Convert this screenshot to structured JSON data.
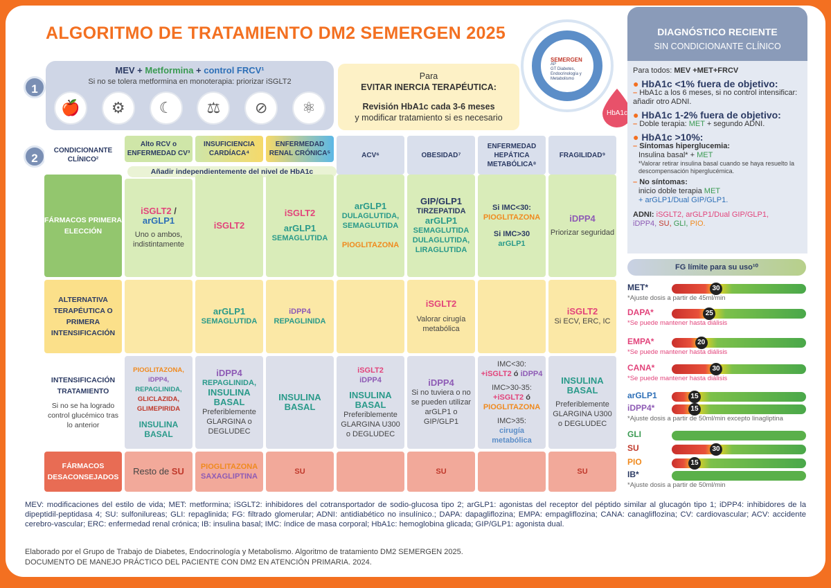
{
  "title": "ALGORITMO DE TRATAMIENTO DM2 SEMERGEN 2025",
  "logo": {
    "name": "SEMERGEN",
    "sub1": "AP",
    "sub2": "GT Diabetes, Endocrinología y Metabolismo"
  },
  "hba1c_badge": "HbA1c",
  "step1": {
    "num": "1",
    "mev": "MEV",
    "plus1": " + ",
    "metformina": "Metformina",
    "plus2": " + ",
    "frcv": "control FRCV¹",
    "sub": "Si no se tolera metformina en monoterapia: priorizar iSGLT2"
  },
  "step2": {
    "num": "2"
  },
  "inercia": {
    "l1": "Para",
    "l2": "EVITAR INERCIA TERAPÉUTICA:",
    "l3": "Revisión HbA1c cada 3-6 meses",
    "l4": "y modificar tratamiento si es necesario"
  },
  "headers": {
    "cond": "CONDICIONANTE CLÍNICO²",
    "c1": "Alto RCV o ENFERMEDAD CV³",
    "c2": "INSUFICIENCIA CARDÍACA⁴",
    "c3": "ENFERMEDAD RENAL CRÓNICA⁵",
    "c4": "ACV⁶",
    "c5": "OBESIDAD⁷",
    "c6": "ENFERMEDAD HEPÁTICA METABÓLICA⁸",
    "c7": "FRAGILIDAD⁹"
  },
  "band": "Añadir independientemente del nivel de HbA1c",
  "rows": {
    "r1": {
      "label": "FÁRMACOS PRIMERA ELECCIÓN",
      "c1a": "iSGLT2",
      "c1s": " / ",
      "c1b": "arGLP1",
      "c1c": "Uno o ambos, indistintamente",
      "c2": "iSGLT2",
      "c3a": "iSGLT2",
      "c3b": "arGLP1",
      "c3c": "SEMAGLUTIDA",
      "c4a": "arGLP1",
      "c4b": "DULAGLUTIDA, SEMAGLUTIDA",
      "c4c": "PIOGLITAZONA",
      "c5a": "GIP/GLP1",
      "c5b": "TIRZEPATIDA",
      "c5c": "arGLP1",
      "c5d": "SEMAGLUTIDA DULAGLUTIDA, LIRAGLUTIDA",
      "c6a": "Si IMC<30:",
      "c6b": "PIOGLITAZONA",
      "c6c": "Si IMC>30",
      "c6d": "arGLP1",
      "c7a": "iDPP4",
      "c7b": "Priorizar seguridad"
    },
    "r2": {
      "label": "ALTERNATIVA TERAPÉUTICA O PRIMERA INTENSIFICACIÓN",
      "c2a": "arGLP1",
      "c2b": "SEMAGLUTIDA",
      "c3a": "iDPP4",
      "c3b": "REPAGLINIDA",
      "c5a": "iSGLT2",
      "c5b": "Valorar cirugía metabólica",
      "c7a": "iSGLT2",
      "c7b": "Si ECV, ERC, IC"
    },
    "r3": {
      "label": "INTENSIFICACIÓN TRATAMIENTO",
      "sub": "Si no se ha logrado control glucémico tras lo anterior",
      "c1a": "PIOGLITAZONA,",
      "c1b": "iDPP4,",
      "c1c": "REPAGLINIDA,",
      "c1d": "GLICLAZIDA,",
      "c1e": "GLIMEPIRIDA",
      "c1f": "INSULINA BASAL",
      "c2a": "iDPP4",
      "c2b": "REPAGLINIDA,",
      "c2c": "INSULINA BASAL",
      "c2d": "Preferiblemente GLARGINA o DEGLUDEC",
      "c3": "INSULINA BASAL",
      "c4a": "iSGLT2",
      "c4b": "iDPP4",
      "c4c": "INSULINA BASAL",
      "c4d": "Preferiblemente GLARGINA U300 o DEGLUDEC",
      "c5a": "iDPP4",
      "c5b": "Si no tuviera o no se pueden utilizar arGLP1 o GIP/GLP1",
      "c6a": "IMC<30:",
      "c6b": "+iSGLT2",
      "c6c": " ó ",
      "c6d": "iDPP4",
      "c6e": "IMC>30-35:",
      "c6f": "+iSGLT2",
      "c6g": " ó ",
      "c6h": "PIOGLITAZONA",
      "c6i": "IMC>35:",
      "c6j": "cirugía metabólica",
      "c7a": "INSULINA BASAL",
      "c7b": "Preferiblemente GLARGINA U300 o DEGLUDEC"
    },
    "r4": {
      "label": "FÁRMACOS DESACONSEJADOS",
      "c1a": "Resto de ",
      "c1b": "SU",
      "c2a": "PIOGLITAZONA",
      "c2b": "SAXAGLIPTINA",
      "c3": "SU",
      "c5": "SU",
      "c7": "SU"
    }
  },
  "right": {
    "title": "DIAGNÓSTICO RECIENTE",
    "sub": "SIN CONDICIONANTE CLÍNICO",
    "todos": "Para todos:",
    "todos_mev": "MEV +MET+FRCV",
    "h1": "HbA1c <1% fuera de objetivo:",
    "h1t": "HbA1c a los 6 meses, si no control intensificar:  añadir otro ADNI.",
    "h2": "HbA1c 1-2% fuera de objetivo:",
    "h2t": "Doble terapia: ",
    "h2met": "MET",
    "h2t2": " + segundo ADNI.",
    "h3": "HbA1c >10%:",
    "h3a": "Síntomas hiperglucemia:",
    "h3b": "Insulina basal* + ",
    "h3bmet": "MET",
    "h3note": "*Valorar retirar insulina basal cuando se haya resuelto la descompensación hiperglucémica.",
    "h3c": "No síntomas:",
    "h3d": "inicio doble terapia ",
    "h3dmet": "MET",
    "h3e": "+ arGLP1/Dual GIP/GLP1.",
    "adni": "ADNI:",
    "adni1": "iSGLT2, arGLP1/Dual GIP/GLP1,",
    "adni2": "iDPP4, ",
    "adni3": "SU, ",
    "adni4": "GLI, ",
    "adni5": "PIO."
  },
  "fg": {
    "title": "FG límite para su uso¹⁰",
    "items": [
      {
        "label": "MET*",
        "value": "30",
        "note": "*Ajuste dosis a partir de 45ml/min",
        "color": "#2b3a63"
      },
      {
        "label": "DAPA*",
        "value": "25",
        "note": "*Se puede mantener hasta diálisis",
        "color": "#e2447b"
      },
      {
        "label": "EMPA*",
        "value": "20",
        "note": "*Se puede mantener hasta diálisis",
        "color": "#e2447b"
      },
      {
        "label": "CANA*",
        "value": "30",
        "note": "*Se puede mantener hasta diálisis",
        "color": "#e2447b"
      },
      {
        "label": "arGLP1",
        "value": "15",
        "note": "",
        "color": "#2d6fb7"
      },
      {
        "label": "iDPP4*",
        "value": "15",
        "note": "*Ajuste dosis a partir de 50ml/min excepto linagliptina",
        "color": "#8e5bb5"
      },
      {
        "label": "GLI",
        "value": "",
        "note": "",
        "color": "#3a9a52"
      },
      {
        "label": "SU",
        "value": "30",
        "note": "",
        "color": "#c0392b"
      },
      {
        "label": "PIO",
        "value": "15",
        "note": "",
        "color": "#f08a1e"
      },
      {
        "label": "IB*",
        "value": "",
        "note": "*Ajuste dosis a partir de 50ml/min",
        "color": "#2b3a63"
      }
    ]
  },
  "legend": "MEV: modificaciones del estilo de vida; MET: metformina; iSGLT2: inhibidores del cotransportador de sodio-glucosa tipo 2; arGLP1: agonistas del receptor del péptido similar al glucagón tipo 1; iDPP4: inhibidores de la dipeptidil-peptidasa 4; SU: sulfonilureas; GLI: repaglinida; FG: filtrado glomerular; ADNI: antidiabético no insulínico.; DAPA: dapagliflozina; EMPA: empagliflozina; CANA: canagliflozina; CV: cardiovascular; ACV: accidente cerebro-vascular; ERC: enfermedad renal crónica; IB: insulina basal; IMC: índice de masa corporal; HbA1c: hemoglobina glicada; GIP/GLP1: agonista dual.",
  "credit1": "Elaborado por el Grupo de Trabajo de Diabetes, Endocrinología y Metabolismo. Algoritmo de tratamiento DM2 SEMERGEN 2025.",
  "credit2": "DOCUMENTO DE MANEJO PRÁCTICO DEL PACIENTE CON DM2 EN ATENCIÓN PRIMARIA. 2024."
}
